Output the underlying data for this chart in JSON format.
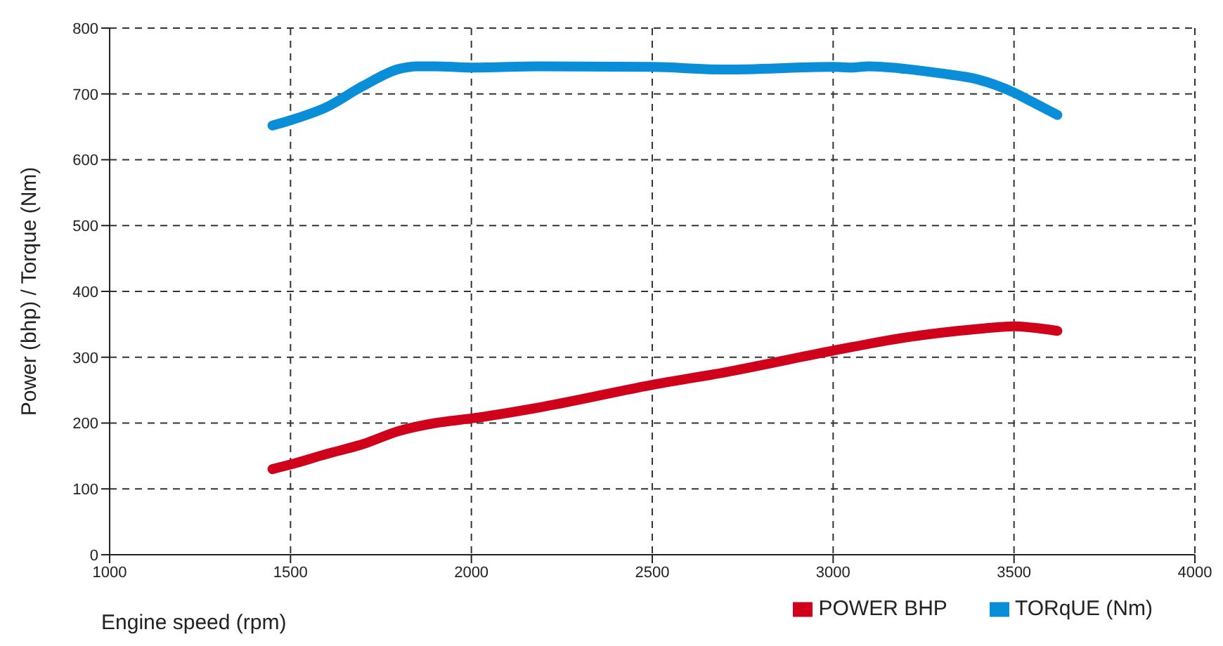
{
  "chart_data": {
    "type": "line",
    "xlabel": "Engine speed (rpm)",
    "ylabel": "Power (bhp) / Torque (Nm)",
    "xlim": [
      1000,
      4000
    ],
    "xticks": [
      1000,
      1500,
      2000,
      2500,
      3000,
      3500,
      4000
    ],
    "ylim": [
      0,
      800
    ],
    "yticks": [
      0,
      100,
      200,
      300,
      400,
      500,
      600,
      700,
      800
    ],
    "grid": true,
    "legend": "bottom right",
    "marker": "none",
    "line_style": "solid",
    "series": [
      {
        "name": "TORqUE (Nm)",
        "color": "#0a8ed8",
        "x": [
          1450,
          1500,
          1600,
          1700,
          1800,
          1850,
          1900,
          2000,
          2200,
          2500,
          2700,
          3000,
          3050,
          3100,
          3200,
          3300,
          3400,
          3500,
          3550,
          3620
        ],
        "values": [
          652,
          660,
          680,
          712,
          738,
          742,
          742,
          740,
          742,
          741,
          737,
          741,
          740,
          742,
          738,
          731,
          722,
          702,
          688,
          668
        ]
      },
      {
        "name": "POWER BHP",
        "color": "#d0021b",
        "x": [
          1450,
          1500,
          1600,
          1700,
          1800,
          1900,
          2000,
          2200,
          2500,
          2700,
          3000,
          3200,
          3400,
          3500,
          3550,
          3620
        ],
        "values": [
          130,
          137,
          153,
          168,
          188,
          200,
          207,
          225,
          258,
          277,
          310,
          330,
          343,
          347,
          345,
          340
        ]
      }
    ]
  }
}
